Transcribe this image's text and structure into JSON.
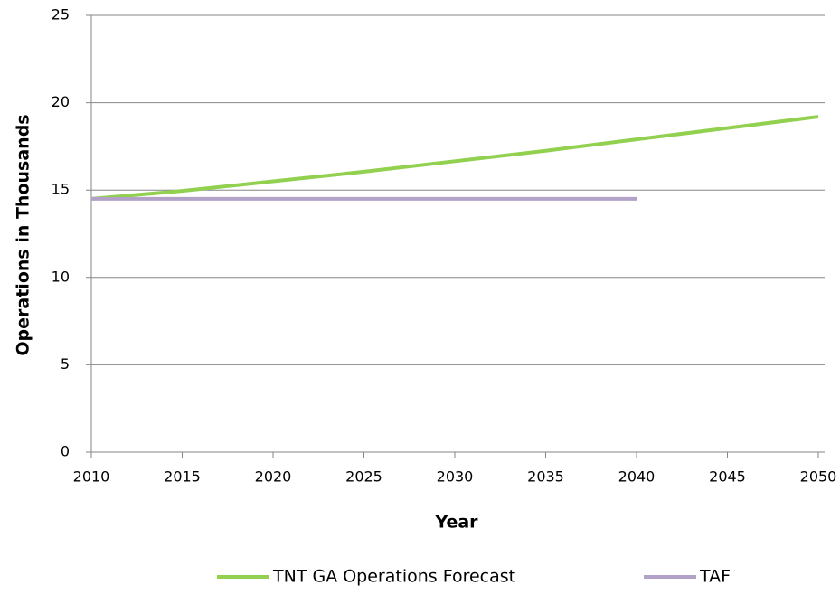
{
  "chart_data": {
    "type": "line",
    "x_label": "Year",
    "y_label": "Operations in Thousands",
    "series": [
      {
        "name": "TNT GA Operations Forecast",
        "color": "#92d050",
        "x": [
          2010,
          2015,
          2020,
          2025,
          2030,
          2035,
          2040,
          2045,
          2050
        ],
        "values": [
          14.5,
          14.95,
          15.5,
          16.05,
          16.65,
          17.25,
          17.9,
          18.55,
          19.2
        ]
      },
      {
        "name": "TAF",
        "color": "#b3a2c7",
        "x": [
          2010,
          2015,
          2020,
          2025,
          2030,
          2035,
          2040
        ],
        "values": [
          14.5,
          14.5,
          14.5,
          14.5,
          14.5,
          14.5,
          14.5
        ]
      }
    ],
    "xlim": [
      2010,
      2050
    ],
    "xticks": [
      2010,
      2015,
      2020,
      2025,
      2030,
      2035,
      2040,
      2045,
      2050
    ],
    "ylim": [
      0,
      25
    ],
    "yticks": [
      0,
      5,
      10,
      15,
      20,
      25
    ],
    "grid": true,
    "legend": "bottom"
  }
}
